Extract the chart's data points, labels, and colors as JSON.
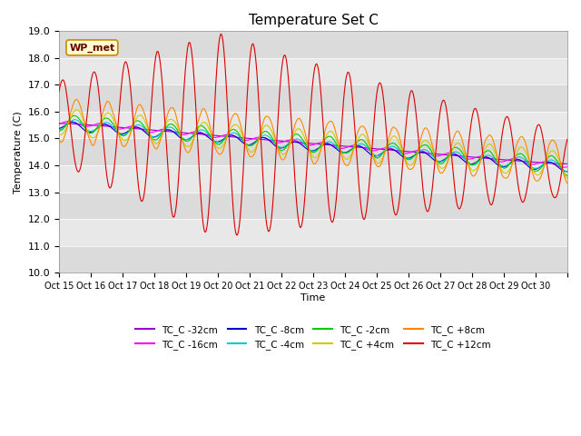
{
  "title": "Temperature Set C",
  "xlabel": "Time",
  "ylabel": "Temperature (C)",
  "ylim": [
    10.0,
    19.0
  ],
  "yticks": [
    10.0,
    11.0,
    12.0,
    13.0,
    14.0,
    15.0,
    16.0,
    17.0,
    18.0,
    19.0
  ],
  "xtick_labels": [
    "Oct 15",
    "Oct 16",
    "Oct 17",
    "Oct 18",
    "Oct 19",
    "Oct 20",
    "Oct 21",
    "Oct 22",
    "Oct 23",
    "Oct 24",
    "Oct 25",
    "Oct 26",
    "Oct 27",
    "Oct 28",
    "Oct 29",
    "Oct 30"
  ],
  "wp_met_label": "WP_met",
  "series": [
    {
      "label": "TC_C -32cm",
      "color": "#9900cc"
    },
    {
      "label": "TC_C -16cm",
      "color": "#ff00ff"
    },
    {
      "label": "TC_C -8cm",
      "color": "#0000cc"
    },
    {
      "label": "TC_C -4cm",
      "color": "#00cccc"
    },
    {
      "label": "TC_C -2cm",
      "color": "#00cc00"
    },
    {
      "label": "TC_C +4cm",
      "color": "#cccc00"
    },
    {
      "label": "TC_C +8cm",
      "color": "#ff8800"
    },
    {
      "label": "TC_C +12cm",
      "color": "#dd0000"
    }
  ],
  "bg_color": "#e8e8e8",
  "plot_bg": "#e8e8e8"
}
